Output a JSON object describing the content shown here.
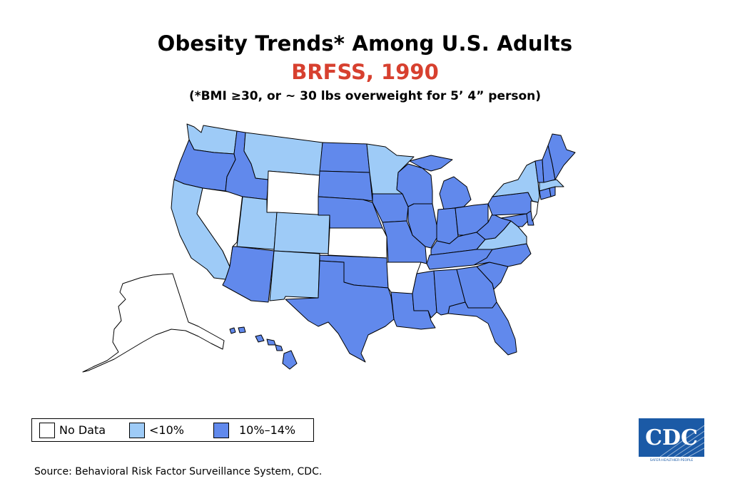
{
  "title": "Obesity Trends* Among U.S. Adults",
  "subtitle": "BRFSS, 1990",
  "note": "(*BMI ≥30, or ~ 30 lbs overweight for 5’ 4” person)",
  "source": "Source: Behavioral Risk Factor Surveillance System, CDC.",
  "colors": {
    "subtitle": "#d7402f",
    "no_data": "#ffffff",
    "lt10": "#9ecbf7",
    "p10_14": "#6189ec",
    "logo_blue": "#1b5aa6"
  },
  "legend": [
    {
      "label": "No Data",
      "category": "no_data"
    },
    {
      "label": "<10%",
      "category": "lt10"
    },
    {
      "label": "10%–14%",
      "category": "p10_14"
    }
  ],
  "logo": {
    "text": "CDC",
    "tagline": "SAFER·HEALTHIER·PEOPLE"
  },
  "states": {
    "WA": "lt10",
    "OR": "p10_14",
    "CA": "lt10",
    "NV": "no_data",
    "ID": "p10_14",
    "MT": "lt10",
    "WY": "no_data",
    "UT": "lt10",
    "CO": "lt10",
    "AZ": "p10_14",
    "NM": "lt10",
    "ND": "p10_14",
    "SD": "p10_14",
    "NE": "p10_14",
    "KS": "no_data",
    "OK": "p10_14",
    "TX": "p10_14",
    "MN": "lt10",
    "IA": "p10_14",
    "MO": "p10_14",
    "AR": "no_data",
    "LA": "p10_14",
    "WI": "p10_14",
    "IL": "p10_14",
    "MI": "p10_14",
    "IN": "p10_14",
    "OH": "p10_14",
    "KY": "p10_14",
    "TN": "p10_14",
    "MS": "p10_14",
    "AL": "p10_14",
    "GA": "p10_14",
    "FL": "p10_14",
    "SC": "p10_14",
    "NC": "p10_14",
    "VA": "lt10",
    "WV": "p10_14",
    "MD": "p10_14",
    "DE": "p10_14",
    "PA": "p10_14",
    "NJ": "no_data",
    "NY": "lt10",
    "CT": "p10_14",
    "RI": "p10_14",
    "MA": "lt10",
    "VT": "p10_14",
    "NH": "p10_14",
    "ME": "p10_14",
    "AK": "no_data",
    "HI": "p10_14"
  }
}
